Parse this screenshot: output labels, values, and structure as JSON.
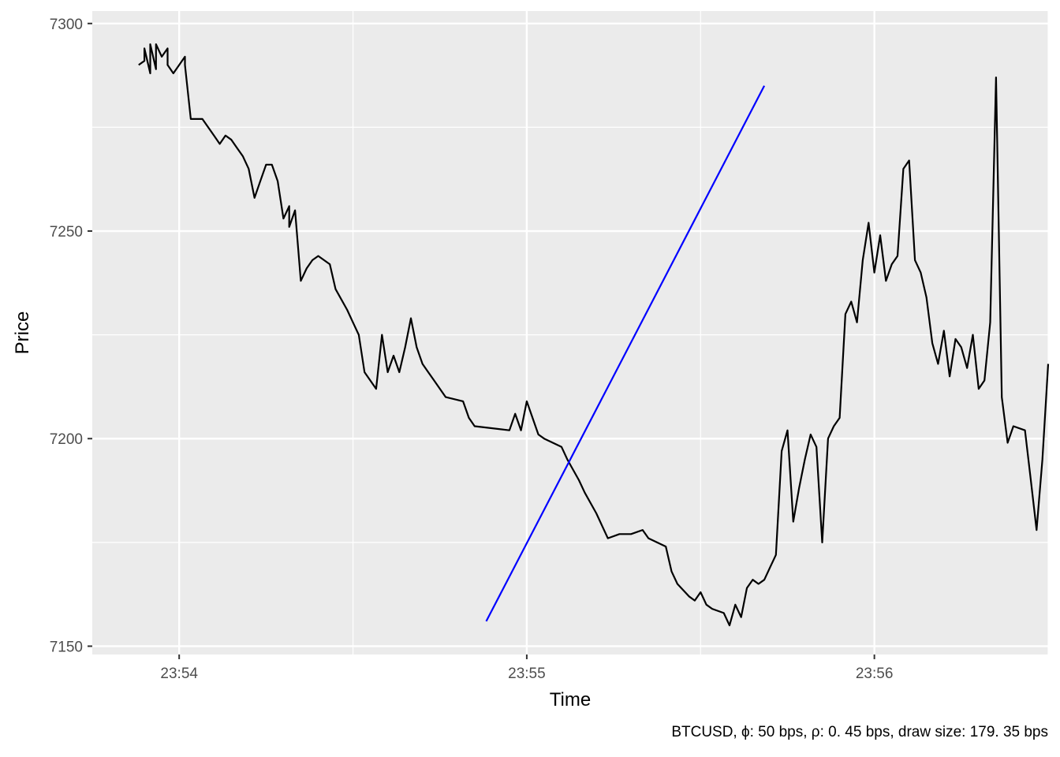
{
  "chart_data": {
    "type": "line",
    "xlabel": "Time",
    "ylabel": "Price",
    "caption": "BTCUSD, ϕ: 50 bps, ρ: 0. 45 bps, draw size: 179. 35 bps",
    "x_unit": "HH:MM:SS",
    "xlim": [
      "23:53:45",
      "23:56:30"
    ],
    "ylim": [
      7148,
      7303
    ],
    "x_ticks": [
      "23:54",
      "23:55",
      "23:56"
    ],
    "y_ticks": [
      7150,
      7200,
      7250,
      7300
    ],
    "grid": true,
    "legend": "none",
    "series": [
      {
        "color": "#000000",
        "points": [
          [
            "23:53:53",
            7290
          ],
          [
            "23:53:54",
            7291
          ],
          [
            "23:53:54",
            7294
          ],
          [
            "23:53:55",
            7288
          ],
          [
            "23:53:55",
            7295
          ],
          [
            "23:53:56",
            7289
          ],
          [
            "23:53:56",
            7295
          ],
          [
            "23:53:57",
            7292
          ],
          [
            "23:53:58",
            7294
          ],
          [
            "23:53:58",
            7290
          ],
          [
            "23:53:59",
            7288
          ],
          [
            "23:54:00",
            7290
          ],
          [
            "23:54:01",
            7292
          ],
          [
            "23:54:01",
            7290
          ],
          [
            "23:54:02",
            7277
          ],
          [
            "23:54:04",
            7277
          ],
          [
            "23:54:06",
            7273
          ],
          [
            "23:54:07",
            7271
          ],
          [
            "23:54:08",
            7273
          ],
          [
            "23:54:09",
            7272
          ],
          [
            "23:54:10",
            7270
          ],
          [
            "23:54:11",
            7268
          ],
          [
            "23:54:12",
            7265
          ],
          [
            "23:54:13",
            7258
          ],
          [
            "23:54:14",
            7262
          ],
          [
            "23:54:15",
            7266
          ],
          [
            "23:54:16",
            7266
          ],
          [
            "23:54:17",
            7262
          ],
          [
            "23:54:18",
            7253
          ],
          [
            "23:54:19",
            7256
          ],
          [
            "23:54:19",
            7251
          ],
          [
            "23:54:20",
            7255
          ],
          [
            "23:54:21",
            7238
          ],
          [
            "23:54:22",
            7241
          ],
          [
            "23:54:23",
            7243
          ],
          [
            "23:54:24",
            7244
          ],
          [
            "23:54:26",
            7242
          ],
          [
            "23:54:27",
            7236
          ],
          [
            "23:54:29",
            7231
          ],
          [
            "23:54:30",
            7228
          ],
          [
            "23:54:31",
            7225
          ],
          [
            "23:54:32",
            7216
          ],
          [
            "23:54:34",
            7212
          ],
          [
            "23:54:35",
            7225
          ],
          [
            "23:54:36",
            7216
          ],
          [
            "23:54:37",
            7220
          ],
          [
            "23:54:38",
            7216
          ],
          [
            "23:54:39",
            7222
          ],
          [
            "23:54:40",
            7229
          ],
          [
            "23:54:41",
            7222
          ],
          [
            "23:54:42",
            7218
          ],
          [
            "23:54:43",
            7216
          ],
          [
            "23:54:44",
            7214
          ],
          [
            "23:54:46",
            7210
          ],
          [
            "23:54:49",
            7209
          ],
          [
            "23:54:50",
            7205
          ],
          [
            "23:54:51",
            7203
          ],
          [
            "23:54:57",
            7202
          ],
          [
            "23:54:58",
            7206
          ],
          [
            "23:54:59",
            7202
          ],
          [
            "23:55:00",
            7209
          ],
          [
            "23:55:02",
            7201
          ],
          [
            "23:55:03",
            7200
          ],
          [
            "23:55:06",
            7198
          ],
          [
            "23:55:07",
            7195
          ],
          [
            "23:55:09",
            7190
          ],
          [
            "23:55:10",
            7187
          ],
          [
            "23:55:12",
            7182
          ],
          [
            "23:55:13",
            7179
          ],
          [
            "23:55:14",
            7176
          ],
          [
            "23:55:16",
            7177
          ],
          [
            "23:55:18",
            7177
          ],
          [
            "23:55:20",
            7178
          ],
          [
            "23:55:21",
            7176
          ],
          [
            "23:55:24",
            7174
          ],
          [
            "23:55:25",
            7168
          ],
          [
            "23:55:26",
            7165
          ],
          [
            "23:55:28",
            7162
          ],
          [
            "23:55:29",
            7161
          ],
          [
            "23:55:30",
            7163
          ],
          [
            "23:55:31",
            7160
          ],
          [
            "23:55:32",
            7159
          ],
          [
            "23:55:34",
            7158
          ],
          [
            "23:55:35",
            7155
          ],
          [
            "23:55:36",
            7160
          ],
          [
            "23:55:37",
            7157
          ],
          [
            "23:55:38",
            7164
          ],
          [
            "23:55:39",
            7166
          ],
          [
            "23:55:40",
            7165
          ],
          [
            "23:55:41",
            7166
          ],
          [
            "23:55:42",
            7169
          ],
          [
            "23:55:43",
            7172
          ],
          [
            "23:55:44",
            7197
          ],
          [
            "23:55:45",
            7202
          ],
          [
            "23:55:46",
            7180
          ],
          [
            "23:55:47",
            7188
          ],
          [
            "23:55:48",
            7195
          ],
          [
            "23:55:49",
            7201
          ],
          [
            "23:55:50",
            7198
          ],
          [
            "23:55:51",
            7175
          ],
          [
            "23:55:52",
            7200
          ],
          [
            "23:55:53",
            7203
          ],
          [
            "23:55:54",
            7205
          ],
          [
            "23:55:55",
            7230
          ],
          [
            "23:55:56",
            7233
          ],
          [
            "23:55:57",
            7228
          ],
          [
            "23:55:58",
            7243
          ],
          [
            "23:55:59",
            7252
          ],
          [
            "23:56:00",
            7240
          ],
          [
            "23:56:01",
            7249
          ],
          [
            "23:56:02",
            7238
          ],
          [
            "23:56:03",
            7242
          ],
          [
            "23:56:04",
            7244
          ],
          [
            "23:56:05",
            7265
          ],
          [
            "23:56:06",
            7267
          ],
          [
            "23:56:07",
            7243
          ],
          [
            "23:56:08",
            7240
          ],
          [
            "23:56:09",
            7234
          ],
          [
            "23:56:10",
            7223
          ],
          [
            "23:56:11",
            7218
          ],
          [
            "23:56:12",
            7226
          ],
          [
            "23:56:13",
            7215
          ],
          [
            "23:56:14",
            7224
          ],
          [
            "23:56:15",
            7222
          ],
          [
            "23:56:16",
            7217
          ],
          [
            "23:56:17",
            7225
          ],
          [
            "23:56:18",
            7212
          ],
          [
            "23:56:19",
            7214
          ],
          [
            "23:56:20",
            7228
          ],
          [
            "23:56:21",
            7287
          ],
          [
            "23:56:22",
            7210
          ],
          [
            "23:56:23",
            7199
          ],
          [
            "23:56:24",
            7203
          ],
          [
            "23:56:26",
            7202
          ],
          [
            "23:56:27",
            7190
          ],
          [
            "23:56:28",
            7178
          ],
          [
            "23:56:29",
            7195
          ],
          [
            "23:56:30",
            7218
          ]
        ]
      }
    ],
    "trend_line": {
      "color": "#0000ff",
      "points": [
        [
          "23:54:53",
          7156
        ],
        [
          "23:55:41",
          7285
        ]
      ]
    }
  }
}
